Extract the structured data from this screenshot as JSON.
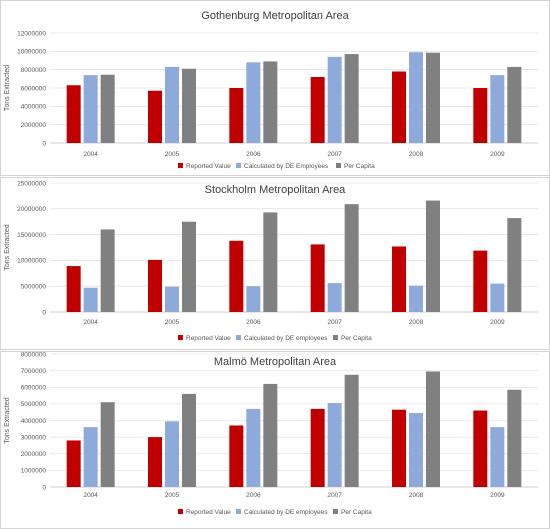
{
  "chart_data": [
    {
      "type": "bar",
      "title": "Gothenburg Metropolitan Area",
      "ylabel": "Tons Extracted",
      "xlabel": "",
      "ylim": [
        0,
        12000000
      ],
      "yticks": [
        "0",
        "2000000",
        "4000000",
        "6000000",
        "8000000",
        "10000000",
        "12000000"
      ],
      "categories": [
        "2004",
        "2005",
        "2006",
        "2007",
        "2008",
        "2009"
      ],
      "legend_position": "bottom",
      "series": [
        {
          "name": "Reported Value",
          "color": "#c00000",
          "values": [
            6300000,
            5700000,
            6000000,
            7200000,
            7800000,
            6000000
          ]
        },
        {
          "name": "Calculated by DE Employees",
          "color": "#8eaadb",
          "values": [
            7400000,
            8300000,
            8800000,
            9400000,
            9900000,
            7400000
          ]
        },
        {
          "name": "Per Capita",
          "color": "#808080",
          "values": [
            7450000,
            8100000,
            8900000,
            9700000,
            9850000,
            8300000
          ]
        }
      ]
    },
    {
      "type": "bar",
      "title": "Stockholm Metropolitan Area",
      "ylabel": "Tons Extracted",
      "xlabel": "",
      "ylim": [
        0,
        25000000
      ],
      "yticks": [
        "0",
        "5000000",
        "10000000",
        "15000000",
        "20000000",
        "25000000"
      ],
      "categories": [
        "2004",
        "2005",
        "2006",
        "2007",
        "2008",
        "2009"
      ],
      "legend_position": "bottom",
      "series": [
        {
          "name": "Reported Value",
          "color": "#c00000",
          "values": [
            8900000,
            10100000,
            13800000,
            13100000,
            12700000,
            11900000
          ]
        },
        {
          "name": "Calculated by DE employees",
          "color": "#8eaadb",
          "values": [
            4700000,
            4900000,
            5000000,
            5600000,
            5100000,
            5500000
          ]
        },
        {
          "name": "Per Capita",
          "color": "#808080",
          "values": [
            16000000,
            17500000,
            19300000,
            20900000,
            21600000,
            18200000
          ]
        }
      ]
    },
    {
      "type": "bar",
      "title": "Malmö Metropolitan Area",
      "ylabel": "Tons Extracted",
      "xlabel": "",
      "ylim": [
        0,
        8000000
      ],
      "yticks": [
        "0",
        "1000000",
        "2000000",
        "3000000",
        "4000000",
        "5000000",
        "6000000",
        "7000000",
        "8000000"
      ],
      "categories": [
        "2004",
        "2005",
        "2006",
        "2007",
        "2008",
        "2009"
      ],
      "legend_position": "bottom",
      "series": [
        {
          "name": "Reported Value",
          "color": "#c00000",
          "values": [
            2800000,
            3000000,
            3700000,
            4700000,
            4650000,
            4600000
          ]
        },
        {
          "name": "Calculated by DE employees",
          "color": "#8eaadb",
          "values": [
            3600000,
            3950000,
            4700000,
            5050000,
            4450000,
            3600000
          ]
        },
        {
          "name": "Per Capita",
          "color": "#808080",
          "values": [
            5100000,
            5600000,
            6200000,
            6750000,
            6950000,
            5850000
          ]
        }
      ]
    }
  ]
}
